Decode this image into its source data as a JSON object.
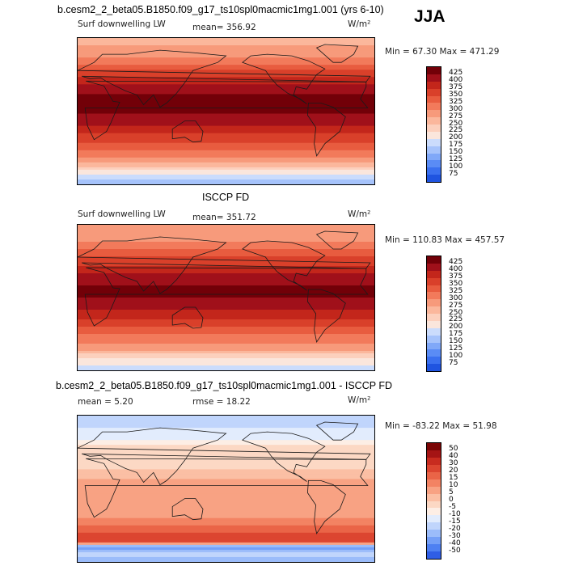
{
  "header": {
    "main_title": "b.cesm2_2_beta05.B1850.f09_g17_ts10spl0macmic1mg1.001 (yrs 6-10)",
    "season": "JJA"
  },
  "colors": {
    "abs_palette": [
      "#08006b",
      "#0b1e9a",
      "#1136c2",
      "#1f54e0",
      "#3a70ef",
      "#5a8cf5",
      "#80a8f8",
      "#a6c3fb",
      "#cbdcfc",
      "#fbe6dc",
      "#fcd0bd",
      "#fbb79c",
      "#f79a7b",
      "#f27a5b",
      "#e85c3f",
      "#d9402a",
      "#c3261b",
      "#a0101a",
      "#720008"
    ],
    "diff_palette": [
      "#00006e",
      "#0a1a9c",
      "#1a3cc8",
      "#2f5ee6",
      "#4e80f2",
      "#749ff7",
      "#9bbcfa",
      "#c0d5fc",
      "#e2ecfd",
      "#fdeee5",
      "#fcd8c4",
      "#fbbfa4",
      "#f8a283",
      "#f38363",
      "#ea6447",
      "#dc4530",
      "#c82b1f",
      "#a51414",
      "#7a0505"
    ]
  },
  "panels": [
    {
      "id": "model",
      "variable": "Surf downwelling LW",
      "mean_text": "mean= 356.92",
      "units": "W/m²",
      "minmax_text": "Min =  67.30 Max = 471.29"
    },
    {
      "id": "obs",
      "title": "ISCCP FD",
      "variable": "Surf downwelling LW",
      "mean_text": "mean= 351.72",
      "units": "W/m²",
      "minmax_text": "Min = 110.83 Max = 457.57"
    },
    {
      "id": "diff",
      "title": "b.cesm2_2_beta05.B1850.f09_g17_ts10spl0macmic1mg1.001 - ISCCP FD",
      "mean_text": "mean =    5.20",
      "rmse_text": "rmse =   18.22",
      "units": "W/m²",
      "minmax_text": "Min = -83.22 Max =  51.98"
    }
  ],
  "chart_data": [
    {
      "type": "heatmap",
      "title": "b.cesm2_2_beta05.B1850.f09_g17_ts10spl0macmic1mg1.001 (yrs 6-10)",
      "subtitle": "Surf downwelling LW (JJA)",
      "units": "W/m2",
      "mean": 356.92,
      "min": 67.3,
      "max": 471.29,
      "levels": [
        75,
        100,
        125,
        150,
        175,
        200,
        225,
        250,
        275,
        300,
        325,
        350,
        375,
        400,
        425
      ],
      "lat_profile": [
        [
          -90,
          160
        ],
        [
          -80,
          190
        ],
        [
          -70,
          235
        ],
        [
          -62,
          290
        ],
        [
          -50,
          320
        ],
        [
          -40,
          345
        ],
        [
          -30,
          370
        ],
        [
          -20,
          395
        ],
        [
          -10,
          415
        ],
        [
          0,
          430
        ],
        [
          10,
          440
        ],
        [
          20,
          425
        ],
        [
          30,
          405
        ],
        [
          45,
          365
        ],
        [
          60,
          320
        ],
        [
          70,
          290
        ],
        [
          80,
          275
        ],
        [
          90,
          265
        ]
      ]
    },
    {
      "type": "heatmap",
      "title": "ISCCP FD",
      "subtitle": "Surf downwelling LW (JJA)",
      "units": "W/m2",
      "mean": 351.72,
      "min": 110.83,
      "max": 457.57,
      "levels": [
        75,
        100,
        125,
        150,
        175,
        200,
        225,
        250,
        275,
        300,
        325,
        350,
        375,
        400,
        425
      ],
      "lat_profile": [
        [
          -90,
          180
        ],
        [
          -80,
          210
        ],
        [
          -70,
          250
        ],
        [
          -62,
          290
        ],
        [
          -50,
          315
        ],
        [
          -40,
          340
        ],
        [
          -30,
          365
        ],
        [
          -20,
          390
        ],
        [
          -10,
          410
        ],
        [
          0,
          425
        ],
        [
          10,
          432
        ],
        [
          20,
          418
        ],
        [
          30,
          400
        ],
        [
          45,
          362
        ],
        [
          60,
          325
        ],
        [
          70,
          300
        ],
        [
          80,
          285
        ],
        [
          90,
          280
        ]
      ]
    },
    {
      "type": "heatmap",
      "title": "b.cesm2_2_beta05.B1850.f09_g17_ts10spl0macmic1mg1.001 - ISCCP FD",
      "units": "W/m2",
      "mean": 5.2,
      "rmse": 18.22,
      "min": -83.22,
      "max": 51.98,
      "levels": [
        -50,
        -40,
        -30,
        -20,
        -15,
        -10,
        -5,
        0,
        5,
        10,
        15,
        20,
        30,
        40,
        50
      ],
      "lat_profile": [
        [
          -90,
          -25
        ],
        [
          -80,
          -15
        ],
        [
          -72,
          -40
        ],
        [
          -66,
          25
        ],
        [
          -55,
          20
        ],
        [
          -45,
          15
        ],
        [
          -35,
          10
        ],
        [
          -20,
          5
        ],
        [
          -10,
          8
        ],
        [
          0,
          10
        ],
        [
          10,
          6
        ],
        [
          20,
          3
        ],
        [
          30,
          -5
        ],
        [
          45,
          0
        ],
        [
          60,
          -10
        ],
        [
          75,
          -15
        ],
        [
          90,
          -20
        ]
      ]
    }
  ]
}
